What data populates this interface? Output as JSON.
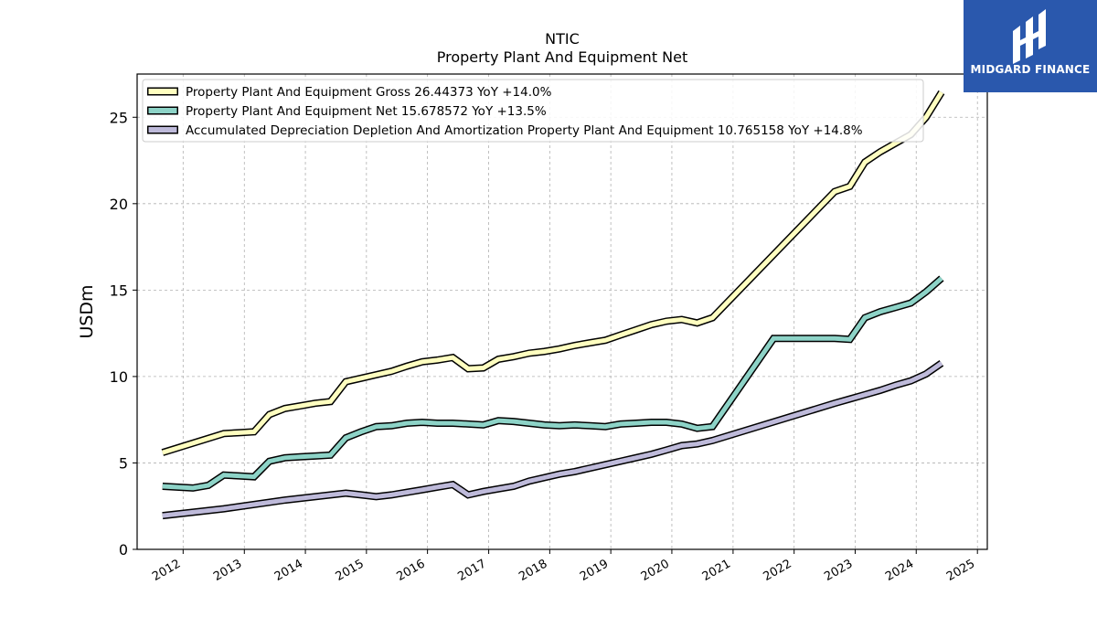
{
  "brand": {
    "name": "MIDGARD FINANCE",
    "icon": "midgard-logo-icon",
    "color": "#2a58ad"
  },
  "chart_data": {
    "type": "line",
    "title": "NTIC",
    "subtitle": "Property Plant And Equipment Net",
    "ylabel": "USDm",
    "xlabel": "",
    "ylim": [
      0,
      27.5
    ],
    "xlim": [
      "2011-04-01",
      "2025-03-01"
    ],
    "yticks": [
      0,
      5,
      10,
      15,
      20,
      25
    ],
    "xticks": [
      "2012",
      "2013",
      "2014",
      "2015",
      "2016",
      "2017",
      "2018",
      "2019",
      "2020",
      "2021",
      "2022",
      "2023",
      "2024",
      "2025"
    ],
    "grid": true,
    "legend_position": "top-left",
    "series": [
      {
        "name": "Property Plant And Equipment Gross  26.44373 YoY +14.0%",
        "color": "#ffffc0",
        "x": [
          "2011-08-31",
          "2012-08-31",
          "2012-11-30",
          "2013-02-28",
          "2013-05-31",
          "2013-08-31",
          "2013-11-30",
          "2014-02-28",
          "2014-05-31",
          "2014-08-31",
          "2014-11-30",
          "2015-02-28",
          "2015-05-31",
          "2015-08-31",
          "2015-11-30",
          "2016-02-29",
          "2016-05-31",
          "2016-08-31",
          "2016-11-30",
          "2017-02-28",
          "2017-05-31",
          "2017-08-31",
          "2017-11-30",
          "2018-02-28",
          "2018-05-31",
          "2018-08-31",
          "2018-11-30",
          "2019-02-28",
          "2019-05-31",
          "2019-08-31",
          "2019-11-30",
          "2020-02-29",
          "2020-05-31",
          "2020-08-31",
          "2022-08-31",
          "2022-11-30",
          "2023-02-28",
          "2023-05-31",
          "2023-08-31",
          "2023-11-30",
          "2024-02-29",
          "2024-05-31"
        ],
        "values": [
          5.6,
          6.7,
          6.75,
          6.8,
          7.8,
          8.15,
          8.3,
          8.45,
          8.55,
          9.7,
          9.9,
          10.1,
          10.3,
          10.6,
          10.85,
          10.95,
          11.1,
          10.45,
          10.5,
          11.0,
          11.15,
          11.35,
          11.45,
          11.6,
          11.8,
          11.95,
          12.1,
          12.4,
          12.7,
          13.0,
          13.2,
          13.3,
          13.1,
          13.4,
          20.7,
          21.0,
          22.4,
          23.0,
          23.5,
          24.0,
          25.0,
          26.44
        ]
      },
      {
        "name": "Property Plant And Equipment Net  15.678572 YoY +13.5%",
        "color": "#8dd3c7",
        "x": [
          "2011-08-31",
          "2012-02-29",
          "2012-05-31",
          "2012-08-31",
          "2012-11-30",
          "2013-02-28",
          "2013-05-31",
          "2013-08-31",
          "2013-11-30",
          "2014-02-28",
          "2014-05-31",
          "2014-08-31",
          "2014-11-30",
          "2015-02-28",
          "2015-05-31",
          "2015-08-31",
          "2015-11-30",
          "2016-02-29",
          "2016-05-31",
          "2016-08-31",
          "2016-11-30",
          "2017-02-28",
          "2017-05-31",
          "2017-08-31",
          "2017-11-30",
          "2018-02-28",
          "2018-05-31",
          "2018-08-31",
          "2018-11-30",
          "2019-02-28",
          "2019-05-31",
          "2019-08-31",
          "2019-11-30",
          "2020-02-29",
          "2020-05-31",
          "2020-08-31",
          "2021-08-31",
          "2022-08-31",
          "2022-11-30",
          "2023-02-28",
          "2023-05-31",
          "2023-08-31",
          "2023-11-30",
          "2024-02-29",
          "2024-05-31"
        ],
        "values": [
          3.65,
          3.55,
          3.7,
          4.3,
          4.25,
          4.2,
          5.1,
          5.3,
          5.35,
          5.4,
          5.45,
          6.45,
          6.8,
          7.1,
          7.15,
          7.3,
          7.35,
          7.3,
          7.3,
          7.25,
          7.2,
          7.45,
          7.4,
          7.3,
          7.2,
          7.15,
          7.2,
          7.15,
          7.1,
          7.25,
          7.3,
          7.35,
          7.35,
          7.25,
          7.0,
          7.1,
          12.2,
          12.2,
          12.15,
          13.4,
          13.75,
          14.0,
          14.25,
          14.9,
          15.68
        ]
      },
      {
        "name": "Accumulated Depreciation Depletion And Amortization Property Plant And Equipment  10.765158 YoY +14.8%",
        "color": "#bebada",
        "x": [
          "2011-08-31",
          "2012-08-31",
          "2013-08-31",
          "2014-08-31",
          "2014-11-30",
          "2015-02-28",
          "2015-05-31",
          "2015-08-31",
          "2015-11-30",
          "2016-02-29",
          "2016-05-31",
          "2016-08-31",
          "2016-11-30",
          "2017-02-28",
          "2017-05-31",
          "2017-08-31",
          "2017-11-30",
          "2018-02-28",
          "2018-05-31",
          "2018-08-31",
          "2018-11-30",
          "2019-02-28",
          "2019-05-31",
          "2019-08-31",
          "2019-11-30",
          "2020-02-29",
          "2020-05-31",
          "2020-08-31",
          "2022-08-31",
          "2022-11-30",
          "2023-02-28",
          "2023-05-31",
          "2023-08-31",
          "2023-11-30",
          "2024-02-29",
          "2024-05-31"
        ],
        "values": [
          1.95,
          2.35,
          2.85,
          3.25,
          3.15,
          3.05,
          3.15,
          3.3,
          3.45,
          3.6,
          3.75,
          3.15,
          3.35,
          3.5,
          3.65,
          3.95,
          4.15,
          4.35,
          4.5,
          4.7,
          4.9,
          5.1,
          5.3,
          5.5,
          5.75,
          6.0,
          6.1,
          6.3,
          8.45,
          8.7,
          8.95,
          9.2,
          9.5,
          9.75,
          10.15,
          10.77
        ]
      }
    ]
  }
}
